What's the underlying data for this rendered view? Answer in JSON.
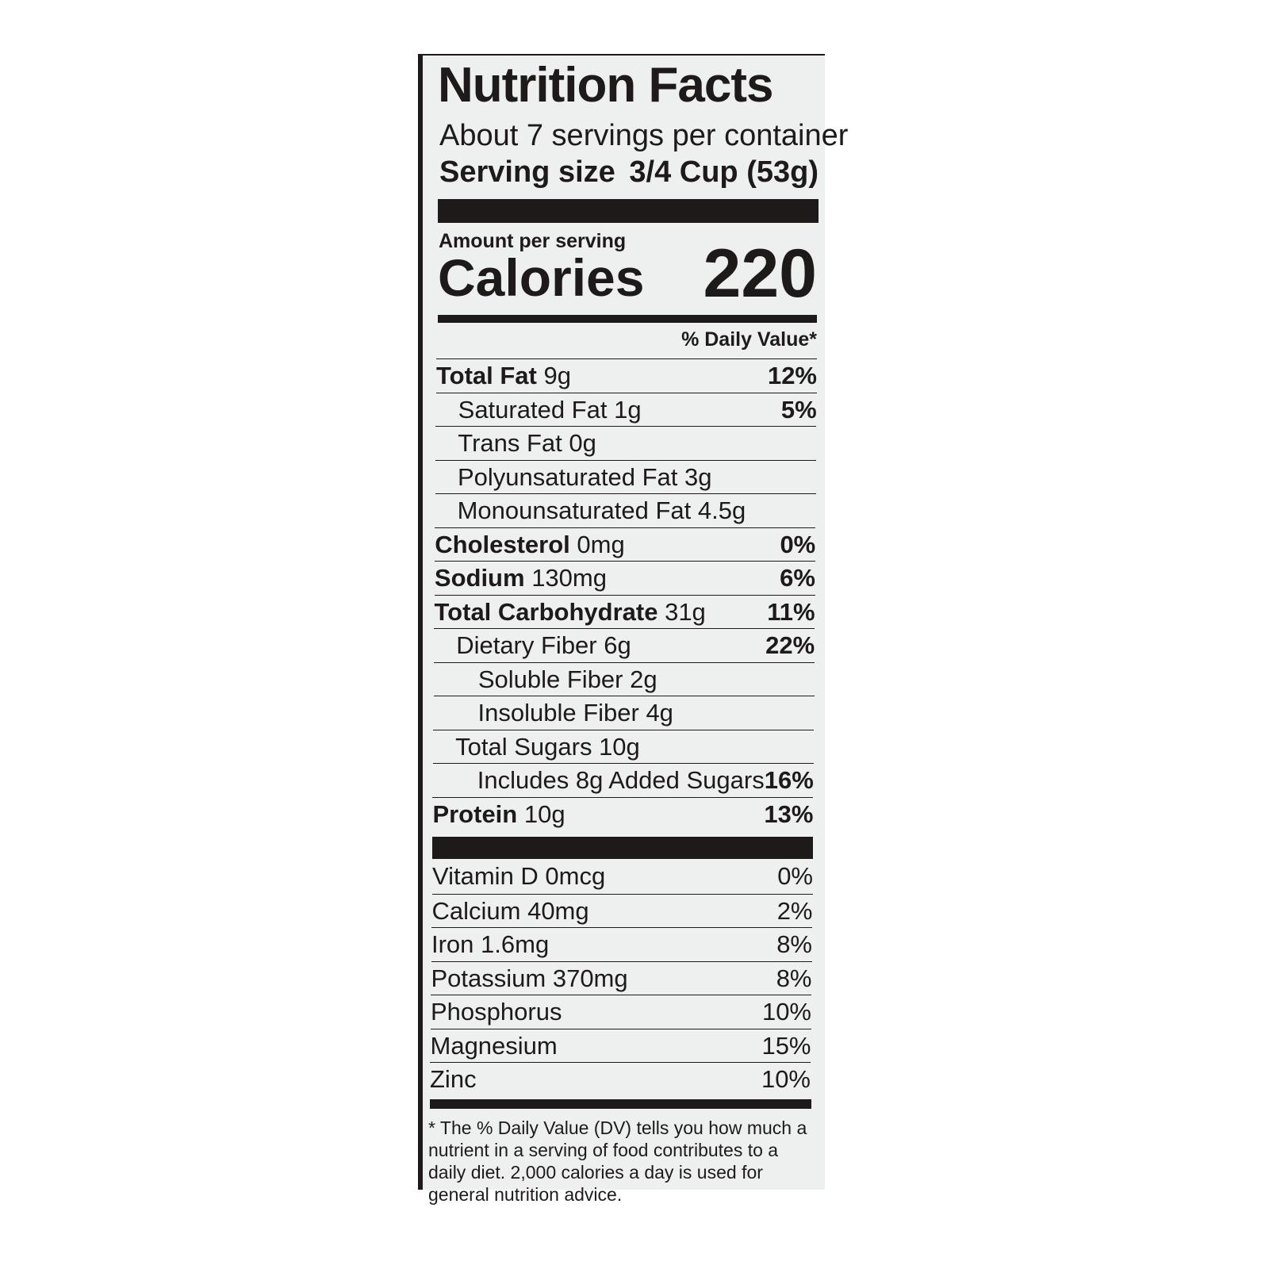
{
  "title": "Nutrition Facts",
  "servings": "About 7 servings per container",
  "serving_size": {
    "label": "Serving size",
    "value": "3/4 Cup (53g)"
  },
  "amount_per_serving": "Amount per serving",
  "calories": {
    "label": "Calories",
    "value": "220"
  },
  "daily_value_header": "% Daily Value*",
  "nutrients": [
    {
      "name": "Total Fat",
      "amount": "9g",
      "dv": "12%",
      "level": 0
    },
    {
      "name": "Saturated Fat 1g",
      "dv": "5%",
      "level": 1
    },
    {
      "name": "Trans Fat 0g",
      "level": 1
    },
    {
      "name": "Polyunsaturated Fat 3g",
      "level": 1
    },
    {
      "name": "Monounsaturated Fat 4.5g",
      "level": 1
    },
    {
      "name": "Cholesterol",
      "amount": "0mg",
      "dv": "0%",
      "level": 0
    },
    {
      "name": "Sodium",
      "amount": "130mg",
      "dv": "6%",
      "level": 0
    },
    {
      "name": "Total Carbohydrate",
      "amount": "31g",
      "dv": "11%",
      "level": 0
    },
    {
      "name": "Dietary Fiber 6g",
      "dv": "22%",
      "level": 1
    },
    {
      "name": "Soluble Fiber 2g",
      "level": 2
    },
    {
      "name": "Insoluble Fiber 4g",
      "level": 2
    },
    {
      "name": "Total Sugars 10g",
      "level": 1
    },
    {
      "name": "Includes 8g Added Sugars",
      "dv": "16%",
      "level": 2
    },
    {
      "name": "Protein",
      "amount": "10g",
      "dv": "13%",
      "level": 0
    }
  ],
  "vitamins": [
    {
      "name": "Vitamin D 0mcg",
      "dv": "0%"
    },
    {
      "name": "Calcium 40mg",
      "dv": "2%"
    },
    {
      "name": "Iron 1.6mg",
      "dv": "8%"
    },
    {
      "name": "Potassium 370mg",
      "dv": "8%"
    },
    {
      "name": "Phosphorus",
      "dv": "10%"
    },
    {
      "name": "Magnesium",
      "dv": "15%"
    },
    {
      "name": "Zinc",
      "dv": "10%"
    }
  ],
  "footnote": "* The % Daily Value (DV) tells you how much a nutrient in a serving of food contributes to a daily diet. 2,000 calories a day is used for general nutrition advice."
}
